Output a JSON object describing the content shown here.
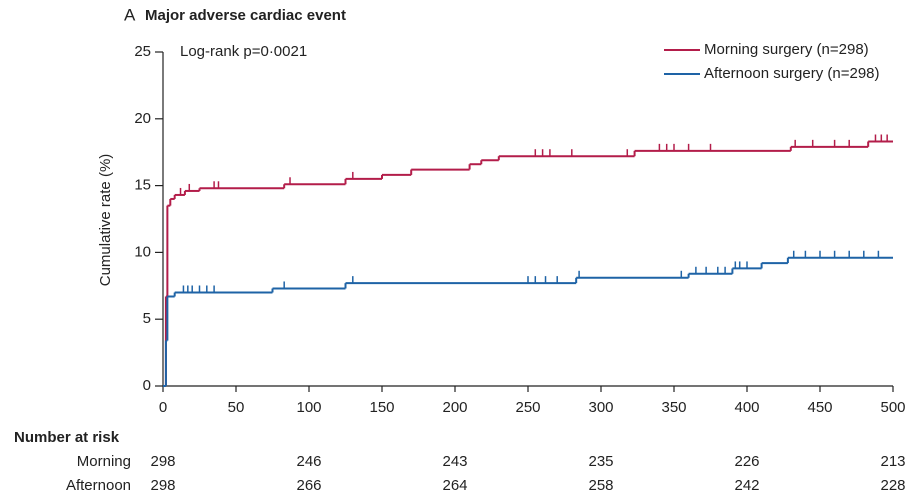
{
  "chart_data": {
    "type": "step",
    "panel": "A",
    "title": "Major adverse cardiac event",
    "annotation": "Log-rank p=0·0021",
    "ylabel": "Cumulative rate (%)",
    "xlim": [
      0,
      500
    ],
    "xticks": [
      0,
      50,
      100,
      150,
      200,
      250,
      300,
      350,
      400,
      450,
      500
    ],
    "ylim": [
      0,
      25
    ],
    "yticks": [
      0,
      5,
      10,
      15,
      20,
      25
    ],
    "legend": "upper right",
    "series": [
      {
        "name": "Morning surgery (n=298)",
        "color": "#b31d4a",
        "x": [
          0,
          2,
          3,
          5,
          8,
          15,
          25,
          83,
          125,
          150,
          170,
          210,
          218,
          230,
          323,
          430,
          483,
          500
        ],
        "values": [
          0,
          6.7,
          13.5,
          14.0,
          14.3,
          14.6,
          14.8,
          15.1,
          15.5,
          15.8,
          16.2,
          16.6,
          16.9,
          17.2,
          17.6,
          17.9,
          18.3,
          18.3
        ],
        "censored": [
          12,
          18,
          35,
          38,
          87,
          130,
          255,
          260,
          265,
          280,
          318,
          340,
          345,
          350,
          360,
          375,
          433,
          445,
          460,
          470,
          488,
          492,
          496
        ]
      },
      {
        "name": "Afternoon surgery (n=298)",
        "color": "#1e63a6",
        "x": [
          0,
          2,
          3,
          8,
          75,
          125,
          283,
          360,
          390,
          410,
          428,
          500
        ],
        "values": [
          0,
          3.4,
          6.7,
          7.0,
          7.3,
          7.7,
          8.1,
          8.4,
          8.8,
          9.2,
          9.6,
          9.6
        ],
        "censored": [
          14,
          17,
          20,
          25,
          30,
          35,
          83,
          130,
          250,
          255,
          262,
          270,
          285,
          355,
          365,
          372,
          380,
          385,
          392,
          395,
          400,
          432,
          440,
          450,
          460,
          470,
          480,
          490
        ]
      }
    ],
    "risk_table": {
      "title": "Number at risk",
      "rows": [
        {
          "name": "Morning",
          "values": [
            298,
            246,
            243,
            235,
            226,
            213
          ]
        },
        {
          "name": "Afternoon",
          "values": [
            298,
            266,
            264,
            258,
            242,
            228
          ]
        }
      ]
    }
  }
}
